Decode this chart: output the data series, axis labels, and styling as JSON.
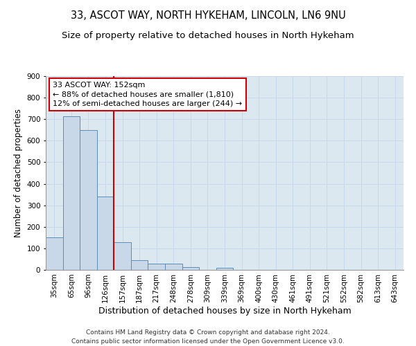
{
  "title1": "33, ASCOT WAY, NORTH HYKEHAM, LINCOLN, LN6 9NU",
  "title2": "Size of property relative to detached houses in North Hykeham",
  "xlabel": "Distribution of detached houses by size in North Hykeham",
  "ylabel": "Number of detached properties",
  "categories": [
    "35sqm",
    "65sqm",
    "96sqm",
    "126sqm",
    "157sqm",
    "187sqm",
    "217sqm",
    "248sqm",
    "278sqm",
    "309sqm",
    "339sqm",
    "369sqm",
    "400sqm",
    "430sqm",
    "461sqm",
    "491sqm",
    "521sqm",
    "552sqm",
    "582sqm",
    "613sqm",
    "643sqm"
  ],
  "values": [
    150,
    715,
    650,
    340,
    130,
    45,
    30,
    30,
    12,
    0,
    10,
    0,
    0,
    0,
    0,
    0,
    0,
    0,
    0,
    0,
    0
  ],
  "bar_color": "#c8d8e8",
  "bar_edge_color": "#5b8db8",
  "vline_x_index": 3.5,
  "vline_color": "#cc0000",
  "annotation_text": "33 ASCOT WAY: 152sqm\n← 88% of detached houses are smaller (1,810)\n12% of semi-detached houses are larger (244) →",
  "annotation_box_color": "#ffffff",
  "annotation_box_edge": "#cc0000",
  "ylim": [
    0,
    900
  ],
  "yticks": [
    0,
    100,
    200,
    300,
    400,
    500,
    600,
    700,
    800,
    900
  ],
  "grid_color": "#c8d8ec",
  "bg_color": "#dce8f0",
  "footer1": "Contains HM Land Registry data © Crown copyright and database right 2024.",
  "footer2": "Contains public sector information licensed under the Open Government Licence v3.0.",
  "title1_fontsize": 10.5,
  "title2_fontsize": 9.5,
  "xlabel_fontsize": 9,
  "ylabel_fontsize": 8.5,
  "tick_fontsize": 7.5,
  "annotation_fontsize": 8,
  "footer_fontsize": 6.5
}
